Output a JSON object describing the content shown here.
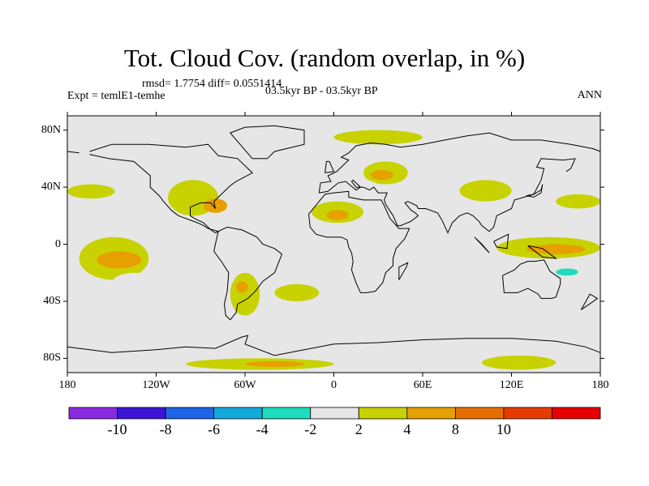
{
  "title": "Tot. Cloud Cov. (random overlap, in %)",
  "stats_label": "rmsd= 1.7754 diff= 0.0551414",
  "experiment_label": "Expt = temlE1-temhe",
  "period_label": "03.5kyr BP - 03.5kyr BP",
  "season_label": "ANN",
  "map": {
    "lon_range": [
      -180,
      180
    ],
    "lat_range": [
      -90,
      90
    ],
    "lat_ticks": [
      {
        "value": 80,
        "label": "80N"
      },
      {
        "value": 40,
        "label": "40N"
      },
      {
        "value": 0,
        "label": "0"
      },
      {
        "value": -40,
        "label": "40S"
      },
      {
        "value": -80,
        "label": "80S"
      }
    ],
    "lon_ticks": [
      {
        "value": -180,
        "label": "180"
      },
      {
        "value": -120,
        "label": "120W"
      },
      {
        "value": -60,
        "label": "60W"
      },
      {
        "value": 0,
        "label": "0"
      },
      {
        "value": 60,
        "label": "60E"
      },
      {
        "value": 120,
        "label": "120E"
      },
      {
        "value": 180,
        "label": "180"
      }
    ],
    "background_color": "#e6e6e6",
    "anomaly_regions": [
      {
        "lon": [
          -180,
          -148
        ],
        "lat": [
          32,
          42
        ],
        "level": 2
      },
      {
        "lon": [
          -172,
          -125
        ],
        "lat": [
          -25,
          5
        ],
        "level": 2
      },
      {
        "lon": [
          -160,
          -130
        ],
        "lat": [
          -17,
          -5
        ],
        "level": 4
      },
      {
        "lon": [
          -150,
          -120
        ],
        "lat": [
          -35,
          -20
        ],
        "level": -2
      },
      {
        "lon": [
          -175,
          -130
        ],
        "lat": [
          -40,
          -30
        ],
        "level": -2
      },
      {
        "lon": [
          -160,
          -90
        ],
        "lat": [
          43,
          55
        ],
        "level": -2
      },
      {
        "lon": [
          -130,
          -100
        ],
        "lat": [
          10,
          22
        ],
        "level": -2
      },
      {
        "lon": [
          -112,
          -78
        ],
        "lat": [
          20,
          45
        ],
        "level": 2
      },
      {
        "lon": [
          -88,
          -72
        ],
        "lat": [
          22,
          32
        ],
        "level": 4
      },
      {
        "lon": [
          -60,
          -35
        ],
        "lat": [
          10,
          20
        ],
        "level": -2
      },
      {
        "lon": [
          -78,
          -60
        ],
        "lat": [
          -10,
          10
        ],
        "level": -2
      },
      {
        "lon": [
          -70,
          -50
        ],
        "lat": [
          -50,
          -20
        ],
        "level": 2
      },
      {
        "lon": [
          -66,
          -58
        ],
        "lat": [
          -34,
          -26
        ],
        "level": 4
      },
      {
        "lon": [
          -40,
          -10
        ],
        "lat": [
          -40,
          -28
        ],
        "level": 2
      },
      {
        "lon": [
          -15,
          20
        ],
        "lat": [
          15,
          30
        ],
        "level": 2
      },
      {
        "lon": [
          -5,
          10
        ],
        "lat": [
          17,
          24
        ],
        "level": 4
      },
      {
        "lon": [
          20,
          50
        ],
        "lat": [
          42,
          58
        ],
        "level": 2
      },
      {
        "lon": [
          25,
          40
        ],
        "lat": [
          45,
          52
        ],
        "level": 4
      },
      {
        "lon": [
          -10,
          30
        ],
        "lat": [
          36,
          46
        ],
        "level": -2
      },
      {
        "lon": [
          60,
          90
        ],
        "lat": [
          10,
          30
        ],
        "level": -2
      },
      {
        "lon": [
          85,
          120
        ],
        "lat": [
          30,
          45
        ],
        "level": 2
      },
      {
        "lon": [
          30,
          60
        ],
        "lat": [
          -30,
          -10
        ],
        "level": -2
      },
      {
        "lon": [
          90,
          130
        ],
        "lat": [
          -15,
          -5
        ],
        "level": -2
      },
      {
        "lon": [
          110,
          180
        ],
        "lat": [
          -10,
          5
        ],
        "level": 2
      },
      {
        "lon": [
          130,
          170
        ],
        "lat": [
          -7,
          0
        ],
        "level": 4
      },
      {
        "lon": [
          150,
          180
        ],
        "lat": [
          25,
          35
        ],
        "level": 2
      },
      {
        "lon": [
          140,
          180
        ],
        "lat": [
          -30,
          -15
        ],
        "level": -2
      },
      {
        "lon": [
          150,
          165
        ],
        "lat": [
          -22,
          -17
        ],
        "level": -4
      },
      {
        "lon": [
          -150,
          -60
        ],
        "lat": [
          -78,
          -72
        ],
        "level": -2
      },
      {
        "lon": [
          -100,
          0
        ],
        "lat": [
          -88,
          -80
        ],
        "level": 2
      },
      {
        "lon": [
          -60,
          -20
        ],
        "lat": [
          -86,
          -82
        ],
        "level": 4
      },
      {
        "lon": [
          10,
          60
        ],
        "lat": [
          -80,
          -72
        ],
        "level": -2
      },
      {
        "lon": [
          100,
          150
        ],
        "lat": [
          -88,
          -78
        ],
        "level": 2
      },
      {
        "lon": [
          140,
          180
        ],
        "lat": [
          -78,
          -70
        ],
        "level": -2
      },
      {
        "lon": [
          -150,
          -90
        ],
        "lat": [
          75,
          85
        ],
        "level": -2
      },
      {
        "lon": [
          0,
          60
        ],
        "lat": [
          70,
          80
        ],
        "level": 2
      }
    ]
  },
  "colorbar": {
    "colors": [
      "#8a2be2",
      "#3c14d6",
      "#1e64e6",
      "#14aadc",
      "#1edcbe",
      "#e6e6e6",
      "#c8d200",
      "#e6a000",
      "#e66e00",
      "#e63c00",
      "#e60000"
    ],
    "labels": [
      "-10",
      "-8",
      "-6",
      "-4",
      "-2",
      "2",
      "4",
      "8",
      "10"
    ],
    "levels": [
      -12,
      -10,
      -8,
      -6,
      -4,
      -2,
      2,
      4,
      8,
      10,
      12
    ]
  }
}
